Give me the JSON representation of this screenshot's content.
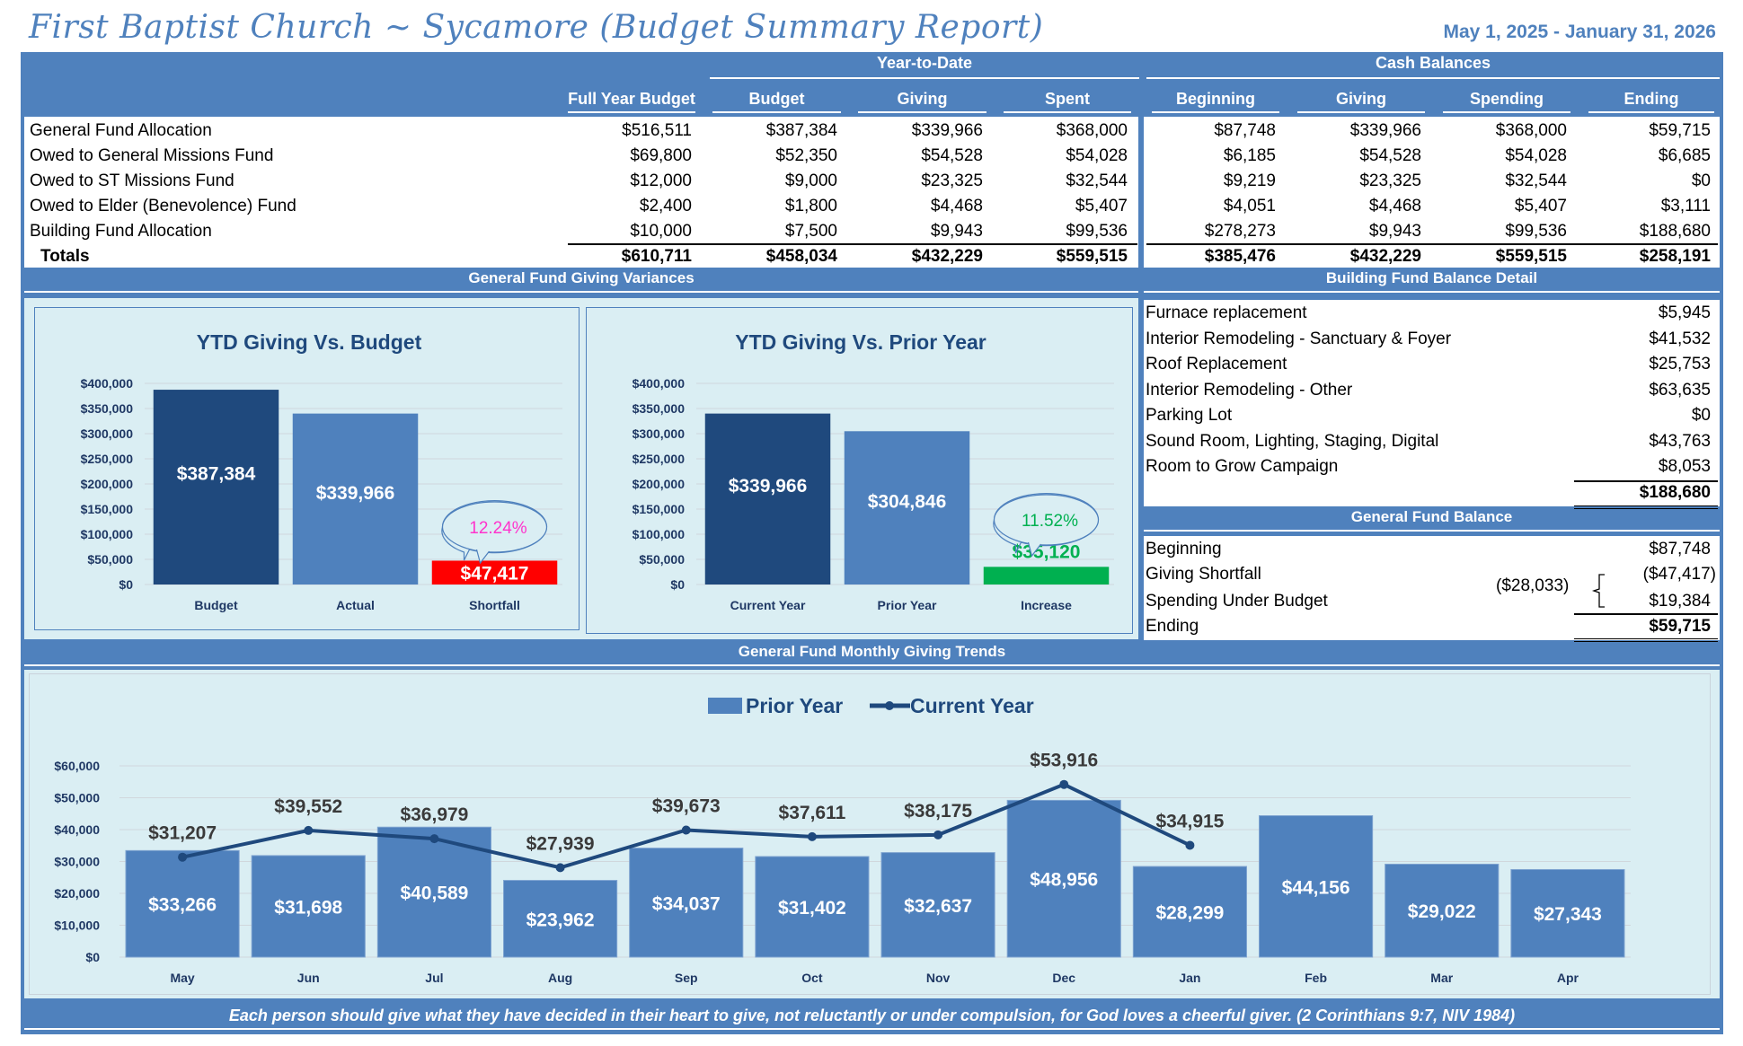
{
  "report": {
    "title": "First Baptist Church ~ Sycamore (Budget Summary Report)",
    "date_range": "May 1, 2025 - January 31, 2026"
  },
  "summary_table": {
    "group_headers": {
      "ytd": "Year-to-Date",
      "cash": "Cash Balances"
    },
    "columns": [
      "Full Year Budget",
      "Budget",
      "Giving",
      "Spent",
      "Beginning",
      "Giving",
      "Spending",
      "Ending"
    ],
    "rows": [
      {
        "label": "General Fund Allocation",
        "values": [
          "$516,511",
          "$387,384",
          "$339,966",
          "$368,000",
          "$87,748",
          "$339,966",
          "$368,000",
          "$59,715"
        ]
      },
      {
        "label": "Owed to General Missions Fund",
        "values": [
          "$69,800",
          "$52,350",
          "$54,528",
          "$54,028",
          "$6,185",
          "$54,528",
          "$54,028",
          "$6,685"
        ]
      },
      {
        "label": "Owed to ST Missions Fund",
        "values": [
          "$12,000",
          "$9,000",
          "$23,325",
          "$32,544",
          "$9,219",
          "$23,325",
          "$32,544",
          "$0"
        ]
      },
      {
        "label": "Owed to Elder (Benevolence) Fund",
        "values": [
          "$2,400",
          "$1,800",
          "$4,468",
          "$5,407",
          "$4,051",
          "$4,468",
          "$5,407",
          "$3,111"
        ]
      },
      {
        "label": "Building Fund Allocation",
        "values": [
          "$10,000",
          "$7,500",
          "$9,943",
          "$99,536",
          "$278,273",
          "$9,943",
          "$99,536",
          "$188,680"
        ]
      }
    ],
    "totals": {
      "label": "Totals",
      "values": [
        "$610,711",
        "$458,034",
        "$432,229",
        "$559,515",
        "$385,476",
        "$432,229",
        "$559,515",
        "$258,191"
      ]
    }
  },
  "sections": {
    "variances": "General Fund Giving Variances",
    "building": "Building Fund Balance Detail",
    "general_balance": "General Fund Balance",
    "monthly": "General Fund Monthly Giving Trends"
  },
  "building_fund": {
    "items": [
      {
        "label": "Furnace replacement",
        "value": "$5,945"
      },
      {
        "label": "Interior Remodeling - Sanctuary & Foyer",
        "value": "$41,532"
      },
      {
        "label": "Roof Replacement",
        "value": "$25,753"
      },
      {
        "label": "Interior Remodeling - Other",
        "value": "$63,635"
      },
      {
        "label": "Parking Lot",
        "value": "$0"
      },
      {
        "label": "Sound Room, Lighting, Staging, Digital",
        "value": "$43,763"
      },
      {
        "label": "Room to Grow Campaign",
        "value": "$8,053"
      }
    ],
    "total": "$188,680"
  },
  "general_fund_balance": {
    "beginning": {
      "label": "Beginning",
      "value": "$87,748"
    },
    "shortfall": {
      "label": "Giving Shortfall",
      "value": "($47,417)"
    },
    "under_budget": {
      "label": "Spending Under Budget",
      "value": "$19,384"
    },
    "net": "($28,033)",
    "ending": {
      "label": "Ending",
      "value": "$59,715"
    }
  },
  "colors": {
    "header_blue": "#4f81bd",
    "dark_blue": "#1f497d",
    "chart_bg": "#daeef3",
    "shortfall_red": "#ff0000",
    "increase_green": "#00b050",
    "pct_pink": "#ff33cc"
  },
  "chart_data": [
    {
      "type": "bar",
      "title": "YTD Giving Vs. Budget",
      "categories": [
        "Budget",
        "Actual",
        "Shortfall"
      ],
      "values": [
        387384,
        339966,
        47417
      ],
      "labels": [
        "$387,384",
        "$339,966",
        "$47,417"
      ],
      "annotation": "12.24%",
      "ylim": [
        0,
        400000
      ],
      "yticks": [
        "$0",
        "$50,000",
        "$100,000",
        "$150,000",
        "$200,000",
        "$250,000",
        "$300,000",
        "$350,000",
        "$400,000"
      ],
      "grid": true
    },
    {
      "type": "bar",
      "title": "YTD Giving Vs. Prior Year",
      "categories": [
        "Current Year",
        "Prior Year",
        "Increase"
      ],
      "values": [
        339966,
        304846,
        35120
      ],
      "labels": [
        "$339,966",
        "$304,846",
        "$35,120"
      ],
      "annotation": "11.52%",
      "ylim": [
        0,
        400000
      ],
      "yticks": [
        "$0",
        "$50,000",
        "$100,000",
        "$150,000",
        "$200,000",
        "$250,000",
        "$300,000",
        "$350,000",
        "$400,000"
      ],
      "grid": true
    },
    {
      "type": "bar",
      "title": "General Fund Monthly Giving Trends",
      "categories": [
        "May",
        "Jun",
        "Jul",
        "Aug",
        "Sep",
        "Oct",
        "Nov",
        "Dec",
        "Jan",
        "Feb",
        "Mar",
        "Apr"
      ],
      "series": [
        {
          "name": "Prior Year",
          "type": "bar",
          "values": [
            33266,
            31698,
            40589,
            23962,
            34037,
            31402,
            32637,
            48956,
            28299,
            44156,
            29022,
            27343
          ],
          "labels": [
            "$33,266",
            "$31,698",
            "$40,589",
            "$23,962",
            "$34,037",
            "$31,402",
            "$32,637",
            "$48,956",
            "$28,299",
            "$44,156",
            "$29,022",
            "$27,343"
          ]
        },
        {
          "name": "Current Year",
          "type": "line",
          "values": [
            31207,
            39552,
            36979,
            27939,
            39673,
            37611,
            38175,
            53916,
            34915,
            null,
            null,
            null
          ],
          "labels": [
            "$31,207",
            "$39,552",
            "$36,979",
            "$27,939",
            "$39,673",
            "$37,611",
            "$38,175",
            "$53,916",
            "$34,915",
            null,
            null,
            null
          ]
        }
      ],
      "legend": "top-center",
      "ylim": [
        0,
        60000
      ],
      "yticks": [
        "$0",
        "$10,000",
        "$20,000",
        "$30,000",
        "$40,000",
        "$50,000",
        "$60,000"
      ],
      "grid": true
    }
  ],
  "footer": "Each person should give what they have decided in their heart to give, not reluctantly or under compulsion, for God loves a cheerful giver. (2 Corinthians 9:7, NIV 1984)"
}
